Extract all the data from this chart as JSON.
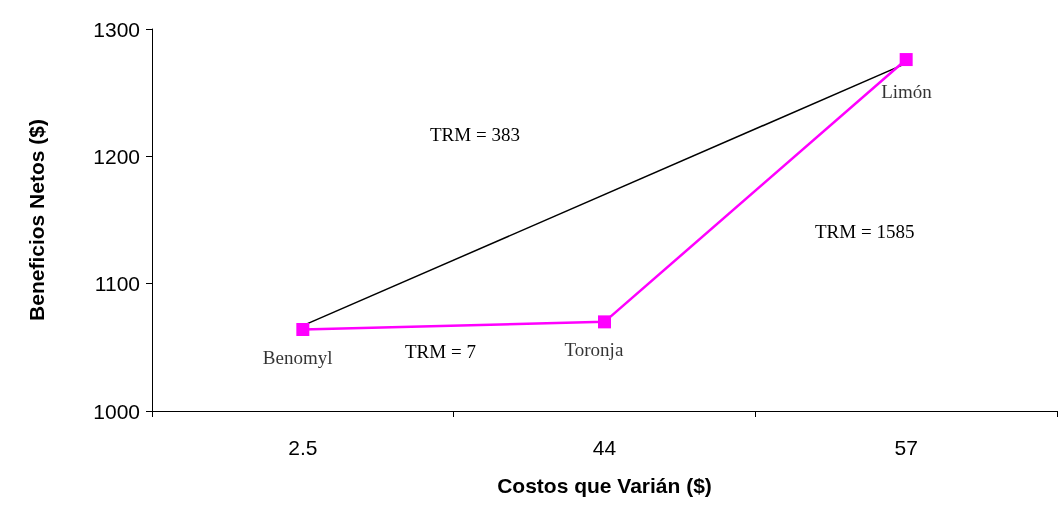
{
  "chart_data": {
    "type": "line",
    "xlabel": "Costos que Varián ($)",
    "ylabel": "Beneficios Netos ($)",
    "categories": [
      "2.5",
      "44",
      "57"
    ],
    "series": [
      {
        "color": "#ff00ff",
        "values": [
          1064,
          1070,
          1276
        ],
        "marker": "square"
      },
      {
        "color": "#000000",
        "x": [
          "2.5",
          "57"
        ],
        "values": [
          1067,
          1273
        ],
        "marker": "none"
      }
    ],
    "ylim": [
      1000,
      1300
    ],
    "yticks": [
      1000,
      1100,
      1200,
      1300
    ],
    "grid": false,
    "annotations": [
      {
        "text": "Benomyl",
        "x": "2.5",
        "y": 1064
      },
      {
        "text": "Toronja",
        "x": "44",
        "y": 1070
      },
      {
        "text": "Limón",
        "x": "57",
        "y": 1276
      },
      "TRM = 383",
      "TRM = 7",
      "TRM = 1585"
    ]
  }
}
